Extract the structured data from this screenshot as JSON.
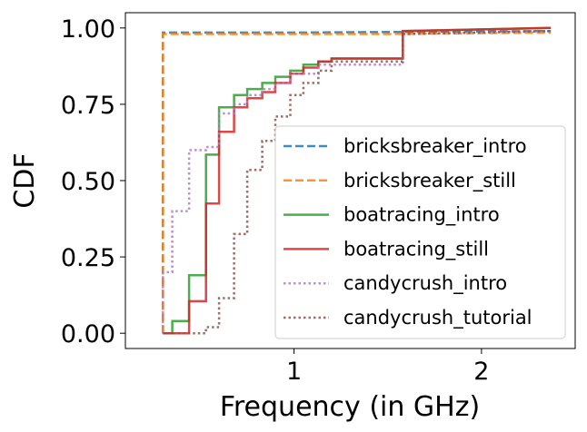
{
  "chart_data": {
    "type": "line",
    "title": "",
    "xlabel": "Frequency (in GHz)",
    "ylabel": "CDF",
    "xlim": [
      0.1,
      2.5
    ],
    "ylim": [
      -0.05,
      1.05
    ],
    "xticks": [
      {
        "value": 1,
        "label": "1"
      },
      {
        "value": 2,
        "label": "2"
      }
    ],
    "yticks": [
      {
        "value": 0.0,
        "label": "0.00"
      },
      {
        "value": 0.25,
        "label": "0.25"
      },
      {
        "value": 0.5,
        "label": "0.50"
      },
      {
        "value": 0.75,
        "label": "0.75"
      },
      {
        "value": 1.0,
        "label": "1.00"
      }
    ],
    "grid": false,
    "legend_position": "lower-right",
    "series": [
      {
        "name": "bricksbreaker_intro",
        "color": "#1f77b4",
        "style": "dashed",
        "x": [
          0.3,
          0.3,
          1.0,
          2.37
        ],
        "y": [
          0.0,
          0.985,
          0.985,
          0.99
        ]
      },
      {
        "name": "bricksbreaker_still",
        "color": "#ff7f0e",
        "style": "dashed",
        "x": [
          0.3,
          0.3,
          1.5,
          2.37
        ],
        "y": [
          0.0,
          0.98,
          0.98,
          0.985
        ]
      },
      {
        "name": "boatracing_intro",
        "color": "#2ca02c",
        "style": "solid",
        "x": [
          0.3,
          0.35,
          0.35,
          0.44,
          0.44,
          0.53,
          0.53,
          0.6,
          0.6,
          0.68,
          0.68,
          0.75,
          0.75,
          0.83,
          0.83,
          0.9,
          0.9,
          0.98,
          0.98,
          1.05,
          1.05,
          1.13,
          1.13,
          1.2,
          1.2,
          1.58,
          1.58,
          2.37
        ],
        "y": [
          0.0,
          0.0,
          0.04,
          0.04,
          0.19,
          0.19,
          0.585,
          0.585,
          0.74,
          0.74,
          0.78,
          0.78,
          0.8,
          0.8,
          0.82,
          0.82,
          0.84,
          0.84,
          0.86,
          0.86,
          0.88,
          0.88,
          0.89,
          0.89,
          0.9,
          0.9,
          0.99,
          1.0
        ]
      },
      {
        "name": "boatracing_still",
        "color": "#d62728",
        "style": "solid",
        "x": [
          0.3,
          0.44,
          0.44,
          0.53,
          0.53,
          0.6,
          0.6,
          0.68,
          0.68,
          0.75,
          0.75,
          0.83,
          0.83,
          0.9,
          0.9,
          0.98,
          0.98,
          1.05,
          1.05,
          1.13,
          1.13,
          1.2,
          1.2,
          1.58,
          1.58,
          2.37
        ],
        "y": [
          0.0,
          0.0,
          0.105,
          0.105,
          0.425,
          0.425,
          0.66,
          0.66,
          0.74,
          0.74,
          0.77,
          0.77,
          0.79,
          0.79,
          0.82,
          0.82,
          0.85,
          0.85,
          0.87,
          0.87,
          0.89,
          0.89,
          0.9,
          0.9,
          0.99,
          1.0
        ]
      },
      {
        "name": "candycrush_intro",
        "color": "#b07cc6",
        "style": "dotted",
        "x": [
          0.3,
          0.3,
          0.35,
          0.35,
          0.44,
          0.44,
          0.53,
          0.53,
          0.6,
          0.6,
          0.68,
          0.68,
          0.75,
          0.75,
          0.83,
          0.83,
          0.9,
          0.9,
          0.98,
          0.98,
          1.13,
          1.13,
          1.58,
          1.58,
          2.37
        ],
        "y": [
          0.0,
          0.2,
          0.2,
          0.4,
          0.4,
          0.6,
          0.6,
          0.61,
          0.61,
          0.72,
          0.72,
          0.75,
          0.75,
          0.78,
          0.78,
          0.8,
          0.8,
          0.82,
          0.82,
          0.85,
          0.85,
          0.88,
          0.88,
          0.98,
          0.99
        ]
      },
      {
        "name": "candycrush_tutorial",
        "color": "#8c564b",
        "style": "dotted",
        "x": [
          0.3,
          0.53,
          0.53,
          0.6,
          0.6,
          0.68,
          0.68,
          0.75,
          0.75,
          0.83,
          0.83,
          0.9,
          0.9,
          0.98,
          0.98,
          1.05,
          1.05,
          1.13,
          1.13,
          1.2,
          1.2,
          1.58,
          1.58,
          2.37
        ],
        "y": [
          0.0,
          0.0,
          0.02,
          0.02,
          0.115,
          0.115,
          0.325,
          0.325,
          0.535,
          0.535,
          0.63,
          0.63,
          0.71,
          0.71,
          0.78,
          0.78,
          0.82,
          0.82,
          0.86,
          0.86,
          0.89,
          0.89,
          0.98,
          0.99
        ]
      }
    ]
  }
}
